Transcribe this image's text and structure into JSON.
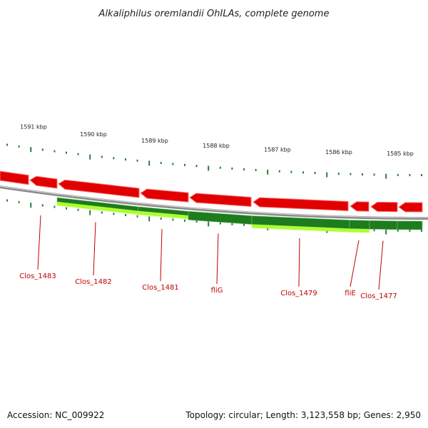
{
  "title": "Alkaliphilus oremlandii OhILAs, complete genome",
  "footer": {
    "accession": "Accession: NC_009922",
    "topology": "Topology: circular; Length: 3,123,558 bp; Genes: 2,950"
  },
  "colors": {
    "cds_forward": "#e00000",
    "track_dark": "#1e7b1e",
    "track_light": "#adff2f",
    "backbone": "#8a8a8a",
    "tick": "#2e7d32",
    "label": "#c00000"
  },
  "tick_labels": [
    "1591 kbp",
    "1590 kbp",
    "1589 kbp",
    "1588 kbp",
    "1587 kbp",
    "1586 kbp",
    "1585 kbp"
  ],
  "genes": [
    "Clos_1483",
    "Clos_1482",
    "Clos_1481",
    "fliG",
    "Clos_1479",
    "fliE",
    "Clos_1477"
  ]
}
